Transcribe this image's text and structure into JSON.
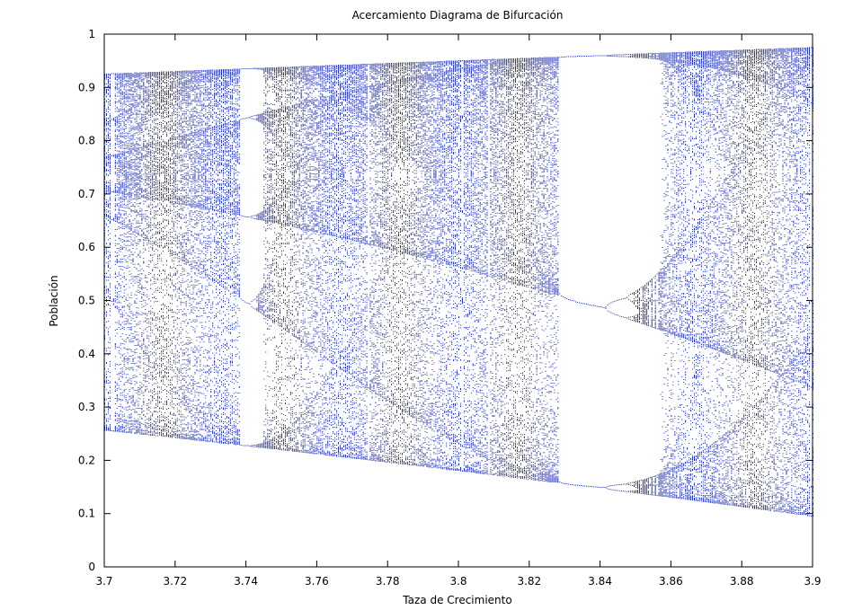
{
  "chart_data": {
    "type": "scatter",
    "title": "Acercamiento Diagrama de Bifurcación",
    "xlabel": "Taza de Crecimiento",
    "ylabel": "Población",
    "xlim": [
      3.7,
      3.9
    ],
    "ylim": [
      0,
      1
    ],
    "x_ticks": [
      "3.7",
      "3.72",
      "3.74",
      "3.76",
      "3.78",
      "3.8",
      "3.82",
      "3.84",
      "3.86",
      "3.88",
      "3.9"
    ],
    "y_ticks": [
      "0",
      "0.1",
      "0.2",
      "0.3",
      "0.4",
      "0.5",
      "0.6",
      "0.7",
      "0.8",
      "0.9",
      "1"
    ],
    "grid": false,
    "legend": "none",
    "series": [
      {
        "function": "logistic map x(n+1) = r * x(n) * (1 - x(n)), plotted after transient",
        "r_range": [
          3.7,
          3.9
        ],
        "r_step": 0.0005,
        "color": "#2030b0",
        "marker": "dot"
      }
    ]
  }
}
